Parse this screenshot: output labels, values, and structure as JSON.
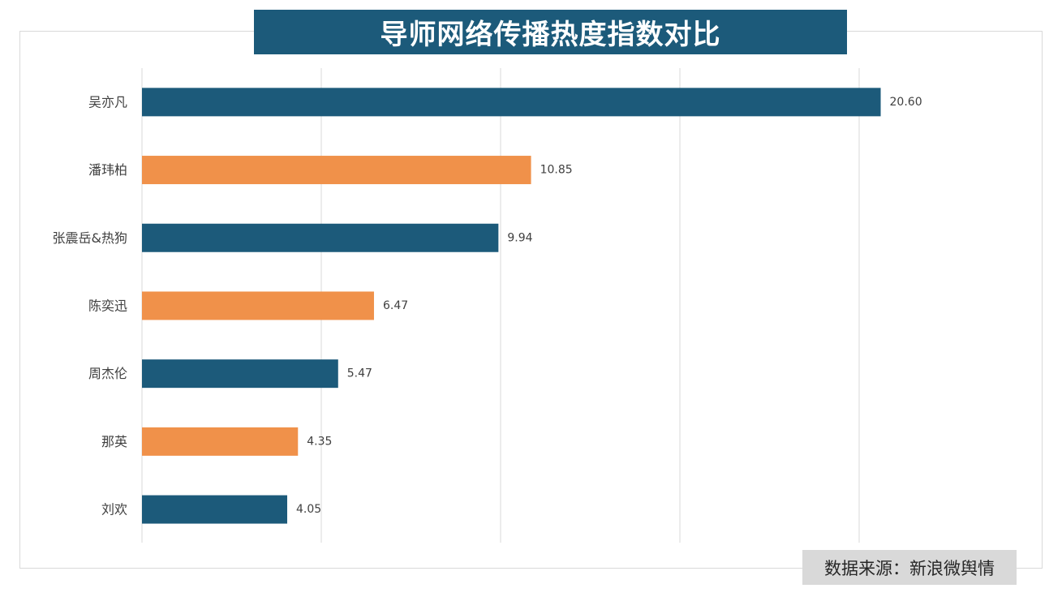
{
  "chart_data": {
    "type": "bar",
    "orientation": "horizontal",
    "title": "导师网络传播热度指数对比",
    "categories": [
      "吴亦凡",
      "潘玮柏",
      "张震岳&热狗",
      "陈奕迅",
      "周杰伦",
      "那英",
      "刘欢"
    ],
    "values": [
      20.6,
      10.85,
      9.94,
      6.47,
      5.47,
      4.35,
      4.05
    ],
    "value_labels": [
      "20.60",
      "10.85",
      "9.94",
      "6.47",
      "5.47",
      "4.35",
      "4.05"
    ],
    "bar_colors": [
      "#1c5a7a",
      "#f0914a",
      "#1c5a7a",
      "#f0914a",
      "#1c5a7a",
      "#f0914a",
      "#1c5a7a"
    ],
    "xlim": [
      0,
      25
    ],
    "x_gridlines": [
      0,
      5,
      10,
      15,
      20,
      25
    ],
    "grid": true,
    "legend": "none",
    "xlabel": "",
    "ylabel": ""
  },
  "colors": {
    "title_bg": "#1c5a7a",
    "primary": "#1c5a7a",
    "accent": "#f0914a",
    "source_bg": "#d9d9d9",
    "grid": "#d9d9d9"
  },
  "source": "数据来源：新浪微舆情"
}
